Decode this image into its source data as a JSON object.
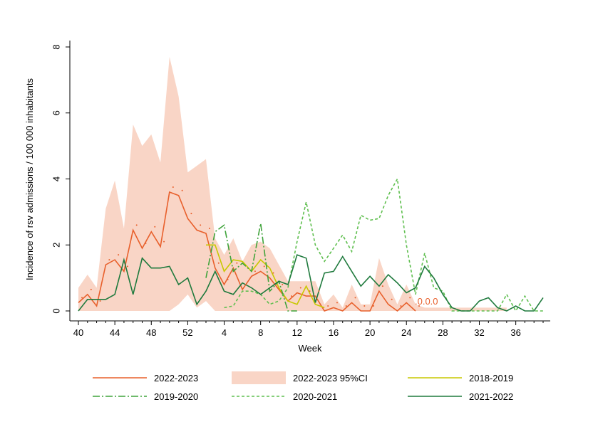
{
  "chart_data": {
    "type": "line",
    "xlabel": "Week",
    "ylabel": "Incidence of rsv admissions / 100 000 inhabitants",
    "ylim": [
      0,
      8
    ],
    "yticks": [
      "0",
      "2",
      "4",
      "6",
      "8"
    ],
    "xticks": [
      "40",
      "44",
      "48",
      "52",
      "4",
      "8",
      "12",
      "16",
      "20",
      "24",
      "28",
      "32",
      "36"
    ],
    "grid": false,
    "legend_position": "bottom",
    "colors": {
      "2022-2023": "#e8602c",
      "ci_fill": "#f9d5c6",
      "2018-2019": "#c8c800",
      "2019-2020": "#3fa33a",
      "2020-2021": "#5fbf4f",
      "2021-2022": "#1f7a3d"
    },
    "annotation": ".0.0.0",
    "series": [
      {
        "name": "2022-2023",
        "style": "solid",
        "points": [
          [
            0,
            0.25
          ],
          [
            1,
            0.5
          ],
          [
            2,
            0.15
          ],
          [
            3,
            1.4
          ],
          [
            4,
            1.55
          ],
          [
            5,
            1.2
          ],
          [
            6,
            2.45
          ],
          [
            7,
            1.9
          ],
          [
            8,
            2.4
          ],
          [
            9,
            1.95
          ],
          [
            10,
            3.6
          ],
          [
            11,
            3.5
          ],
          [
            12,
            2.8
          ],
          [
            13,
            2.45
          ],
          [
            14,
            2.35
          ],
          [
            15,
            1.3
          ],
          [
            16,
            0.8
          ],
          [
            17,
            1.3
          ],
          [
            18,
            0.65
          ],
          [
            19,
            1.05
          ],
          [
            20,
            1.2
          ],
          [
            21,
            1.0
          ],
          [
            22,
            0.65
          ],
          [
            23,
            0.3
          ],
          [
            24,
            0.55
          ],
          [
            25,
            0.45
          ],
          [
            26,
            0.45
          ],
          [
            27,
            0.0
          ],
          [
            28,
            0.1
          ],
          [
            29,
            0.0
          ],
          [
            30,
            0.25
          ],
          [
            31,
            0.0
          ],
          [
            32,
            0.0
          ],
          [
            33,
            0.6
          ],
          [
            34,
            0.2
          ],
          [
            35,
            0.0
          ],
          [
            36,
            0.25
          ],
          [
            37,
            0.0
          ]
        ]
      },
      {
        "name": "2022-2023 95%CI",
        "style": "band",
        "lower": [
          [
            0,
            0
          ],
          [
            1,
            0
          ],
          [
            2,
            0
          ],
          [
            3,
            0
          ],
          [
            4,
            0
          ],
          [
            5,
            0
          ],
          [
            6,
            0
          ],
          [
            7,
            0
          ],
          [
            8,
            0
          ],
          [
            9,
            0
          ],
          [
            10,
            0
          ],
          [
            11,
            0.2
          ],
          [
            12,
            0.5
          ],
          [
            13,
            0.1
          ],
          [
            14,
            0.3
          ],
          [
            15,
            0.0
          ],
          [
            16,
            0.0
          ],
          [
            17,
            0.0
          ],
          [
            18,
            0.0
          ],
          [
            19,
            0.0
          ],
          [
            20,
            0.0
          ],
          [
            21,
            0.0
          ],
          [
            22,
            0.0
          ],
          [
            23,
            0.0
          ],
          [
            24,
            0.0
          ],
          [
            25,
            0.0
          ],
          [
            26,
            0.0
          ],
          [
            27,
            0.0
          ],
          [
            28,
            0.0
          ],
          [
            29,
            0.0
          ],
          [
            30,
            0.0
          ],
          [
            31,
            0.0
          ],
          [
            32,
            0.0
          ],
          [
            33,
            0.0
          ],
          [
            34,
            0.0
          ],
          [
            35,
            0.0
          ],
          [
            36,
            0.0
          ],
          [
            37,
            0.0
          ],
          [
            38,
            0.0
          ],
          [
            39,
            0.0
          ],
          [
            40,
            0.0
          ],
          [
            41,
            0.0
          ],
          [
            42,
            0.0
          ],
          [
            43,
            0.0
          ],
          [
            44,
            0.0
          ],
          [
            45,
            0.0
          ],
          [
            46,
            0.0
          ],
          [
            47,
            0.0
          ]
        ],
        "upper": [
          [
            0,
            0.7
          ],
          [
            1,
            1.1
          ],
          [
            2,
            0.7
          ],
          [
            3,
            3.1
          ],
          [
            4,
            3.95
          ],
          [
            5,
            2.5
          ],
          [
            6,
            5.65
          ],
          [
            7,
            5.0
          ],
          [
            8,
            5.35
          ],
          [
            9,
            4.5
          ],
          [
            10,
            7.7
          ],
          [
            11,
            6.5
          ],
          [
            12,
            4.2
          ],
          [
            13,
            4.4
          ],
          [
            14,
            4.6
          ],
          [
            15,
            2.2
          ],
          [
            16,
            1.7
          ],
          [
            17,
            2.2
          ],
          [
            18,
            1.5
          ],
          [
            19,
            2.0
          ],
          [
            20,
            2.1
          ],
          [
            21,
            1.9
          ],
          [
            22,
            1.4
          ],
          [
            23,
            0.9
          ],
          [
            24,
            0.9
          ],
          [
            25,
            0.9
          ],
          [
            26,
            0.9
          ],
          [
            27,
            0.2
          ],
          [
            28,
            0.5
          ],
          [
            29,
            0.1
          ],
          [
            30,
            0.8
          ],
          [
            31,
            0.2
          ],
          [
            32,
            0.2
          ],
          [
            33,
            1.6
          ],
          [
            34,
            0.8
          ],
          [
            35,
            0.2
          ],
          [
            36,
            0.8
          ],
          [
            37,
            0.2
          ],
          [
            38,
            0.1
          ],
          [
            39,
            0.1
          ],
          [
            40,
            0.1
          ],
          [
            41,
            0.1
          ],
          [
            42,
            0.1
          ],
          [
            43,
            0.1
          ],
          [
            44,
            0.1
          ],
          [
            45,
            0.1
          ],
          [
            46,
            0.1
          ],
          [
            47,
            0.1
          ]
        ]
      },
      {
        "name": "2018-2019",
        "style": "solid",
        "points": [
          [
            14,
            2.0
          ],
          [
            15,
            2.0
          ],
          [
            16,
            1.2
          ],
          [
            17,
            1.55
          ],
          [
            18,
            1.5
          ],
          [
            19,
            1.2
          ],
          [
            20,
            1.55
          ],
          [
            21,
            1.3
          ],
          [
            22,
            0.7
          ],
          [
            23,
            0.3
          ],
          [
            24,
            0.2
          ],
          [
            25,
            0.75
          ],
          [
            26,
            0.2
          ],
          [
            27,
            0.1
          ]
        ]
      },
      {
        "name": "2019-2020",
        "style": "dashdot",
        "points": [
          [
            14,
            1.0
          ],
          [
            15,
            2.4
          ],
          [
            16,
            2.6
          ],
          [
            17,
            1.2
          ],
          [
            18,
            1.45
          ],
          [
            19,
            1.2
          ],
          [
            20,
            2.65
          ],
          [
            21,
            0.6
          ],
          [
            22,
            0.9
          ],
          [
            23,
            0.0
          ],
          [
            24,
            0.0
          ]
        ]
      },
      {
        "name": "2020-2021",
        "style": "dashed",
        "points": [
          [
            16,
            0.1
          ],
          [
            17,
            0.15
          ],
          [
            18,
            0.6
          ],
          [
            19,
            0.6
          ],
          [
            20,
            0.5
          ],
          [
            21,
            0.2
          ],
          [
            22,
            0.3
          ],
          [
            23,
            0.7
          ],
          [
            24,
            2.1
          ],
          [
            25,
            3.3
          ],
          [
            26,
            2.0
          ],
          [
            27,
            1.5
          ],
          [
            28,
            1.9
          ],
          [
            29,
            2.3
          ],
          [
            30,
            1.8
          ],
          [
            31,
            2.9
          ],
          [
            32,
            2.75
          ],
          [
            33,
            2.8
          ],
          [
            34,
            3.5
          ],
          [
            35,
            4.0
          ],
          [
            36,
            2.0
          ],
          [
            37,
            0.5
          ],
          [
            38,
            1.75
          ],
          [
            39,
            0.7
          ],
          [
            40,
            0.6
          ],
          [
            41,
            0.0
          ],
          [
            42,
            0.0
          ],
          [
            43,
            0.0
          ],
          [
            44,
            0.0
          ],
          [
            45,
            0.0
          ],
          [
            46,
            0.0
          ],
          [
            47,
            0.5
          ],
          [
            48,
            0.0
          ],
          [
            49,
            0.45
          ],
          [
            50,
            0.0
          ],
          [
            51,
            0.0
          ]
        ]
      },
      {
        "name": "2021-2022",
        "style": "solid",
        "points": [
          [
            0,
            0.0
          ],
          [
            1,
            0.35
          ],
          [
            2,
            0.35
          ],
          [
            3,
            0.35
          ],
          [
            4,
            0.5
          ],
          [
            5,
            1.55
          ],
          [
            6,
            0.5
          ],
          [
            7,
            1.6
          ],
          [
            8,
            1.3
          ],
          [
            9,
            1.3
          ],
          [
            10,
            1.35
          ],
          [
            11,
            0.8
          ],
          [
            12,
            1.0
          ],
          [
            13,
            0.2
          ],
          [
            14,
            0.6
          ],
          [
            15,
            1.2
          ],
          [
            16,
            0.6
          ],
          [
            17,
            0.5
          ],
          [
            18,
            0.85
          ],
          [
            19,
            0.7
          ],
          [
            20,
            0.5
          ],
          [
            21,
            0.7
          ],
          [
            22,
            0.9
          ],
          [
            23,
            0.8
          ],
          [
            24,
            1.7
          ],
          [
            25,
            1.6
          ],
          [
            26,
            0.25
          ],
          [
            27,
            1.15
          ],
          [
            28,
            1.2
          ],
          [
            29,
            1.65
          ],
          [
            30,
            1.2
          ],
          [
            31,
            0.75
          ],
          [
            32,
            1.05
          ],
          [
            33,
            0.75
          ],
          [
            34,
            1.1
          ],
          [
            35,
            0.85
          ],
          [
            36,
            0.55
          ],
          [
            37,
            0.7
          ],
          [
            38,
            1.35
          ],
          [
            39,
            1.0
          ],
          [
            40,
            0.5
          ],
          [
            41,
            0.1
          ],
          [
            42,
            0.0
          ],
          [
            43,
            0.0
          ],
          [
            44,
            0.3
          ],
          [
            45,
            0.4
          ],
          [
            46,
            0.1
          ],
          [
            47,
            0.0
          ],
          [
            48,
            0.15
          ],
          [
            49,
            0.0
          ],
          [
            50,
            0.0
          ],
          [
            51,
            0.4
          ]
        ]
      }
    ]
  }
}
